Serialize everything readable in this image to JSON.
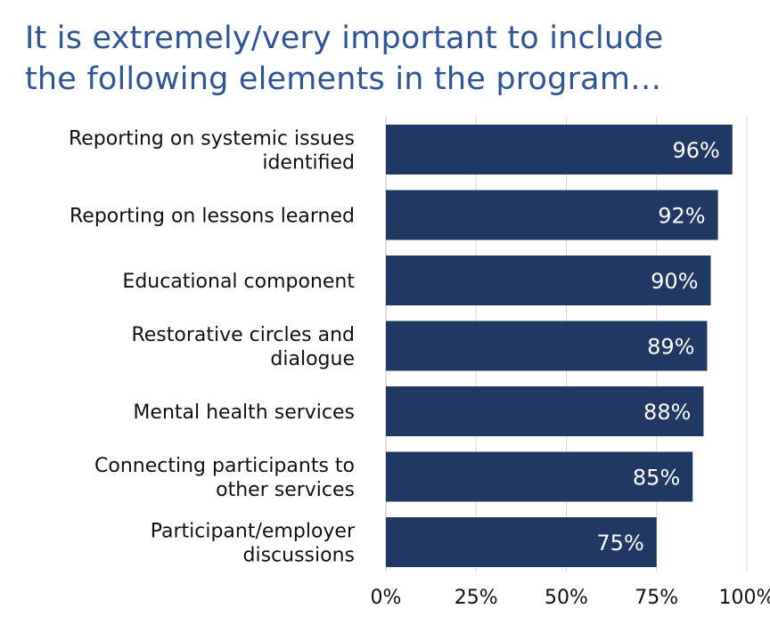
{
  "title_lines": [
    "It is extremely/very important to include",
    "the following elements in the program…"
  ],
  "colors": {
    "title": "#2f5597",
    "bar": "#203864",
    "grid": "#d9d9d9",
    "value_label": "#ffffff"
  },
  "chart_data": {
    "type": "bar",
    "orientation": "horizontal",
    "title": "It is extremely/very important to include the following elements in the program…",
    "categories": [
      [
        "Reporting on systemic issues",
        "identified"
      ],
      [
        "Reporting on lessons learned"
      ],
      [
        "Educational component"
      ],
      [
        "Restorative circles and",
        "dialogue"
      ],
      [
        "Mental health services"
      ],
      [
        "Connecting participants to",
        "other services"
      ],
      [
        "Participant/employer",
        "discussions"
      ]
    ],
    "values": [
      96,
      92,
      90,
      89,
      88,
      85,
      75
    ],
    "value_labels": [
      "96%",
      "92%",
      "90%",
      "89%",
      "88%",
      "85%",
      "75%"
    ],
    "xlim": [
      0,
      100
    ],
    "xticks": [
      0,
      25,
      50,
      75,
      100
    ],
    "xtick_labels": [
      "0%",
      "25%",
      "50%",
      "75%",
      "100%"
    ],
    "grid": true,
    "legend": "none"
  }
}
